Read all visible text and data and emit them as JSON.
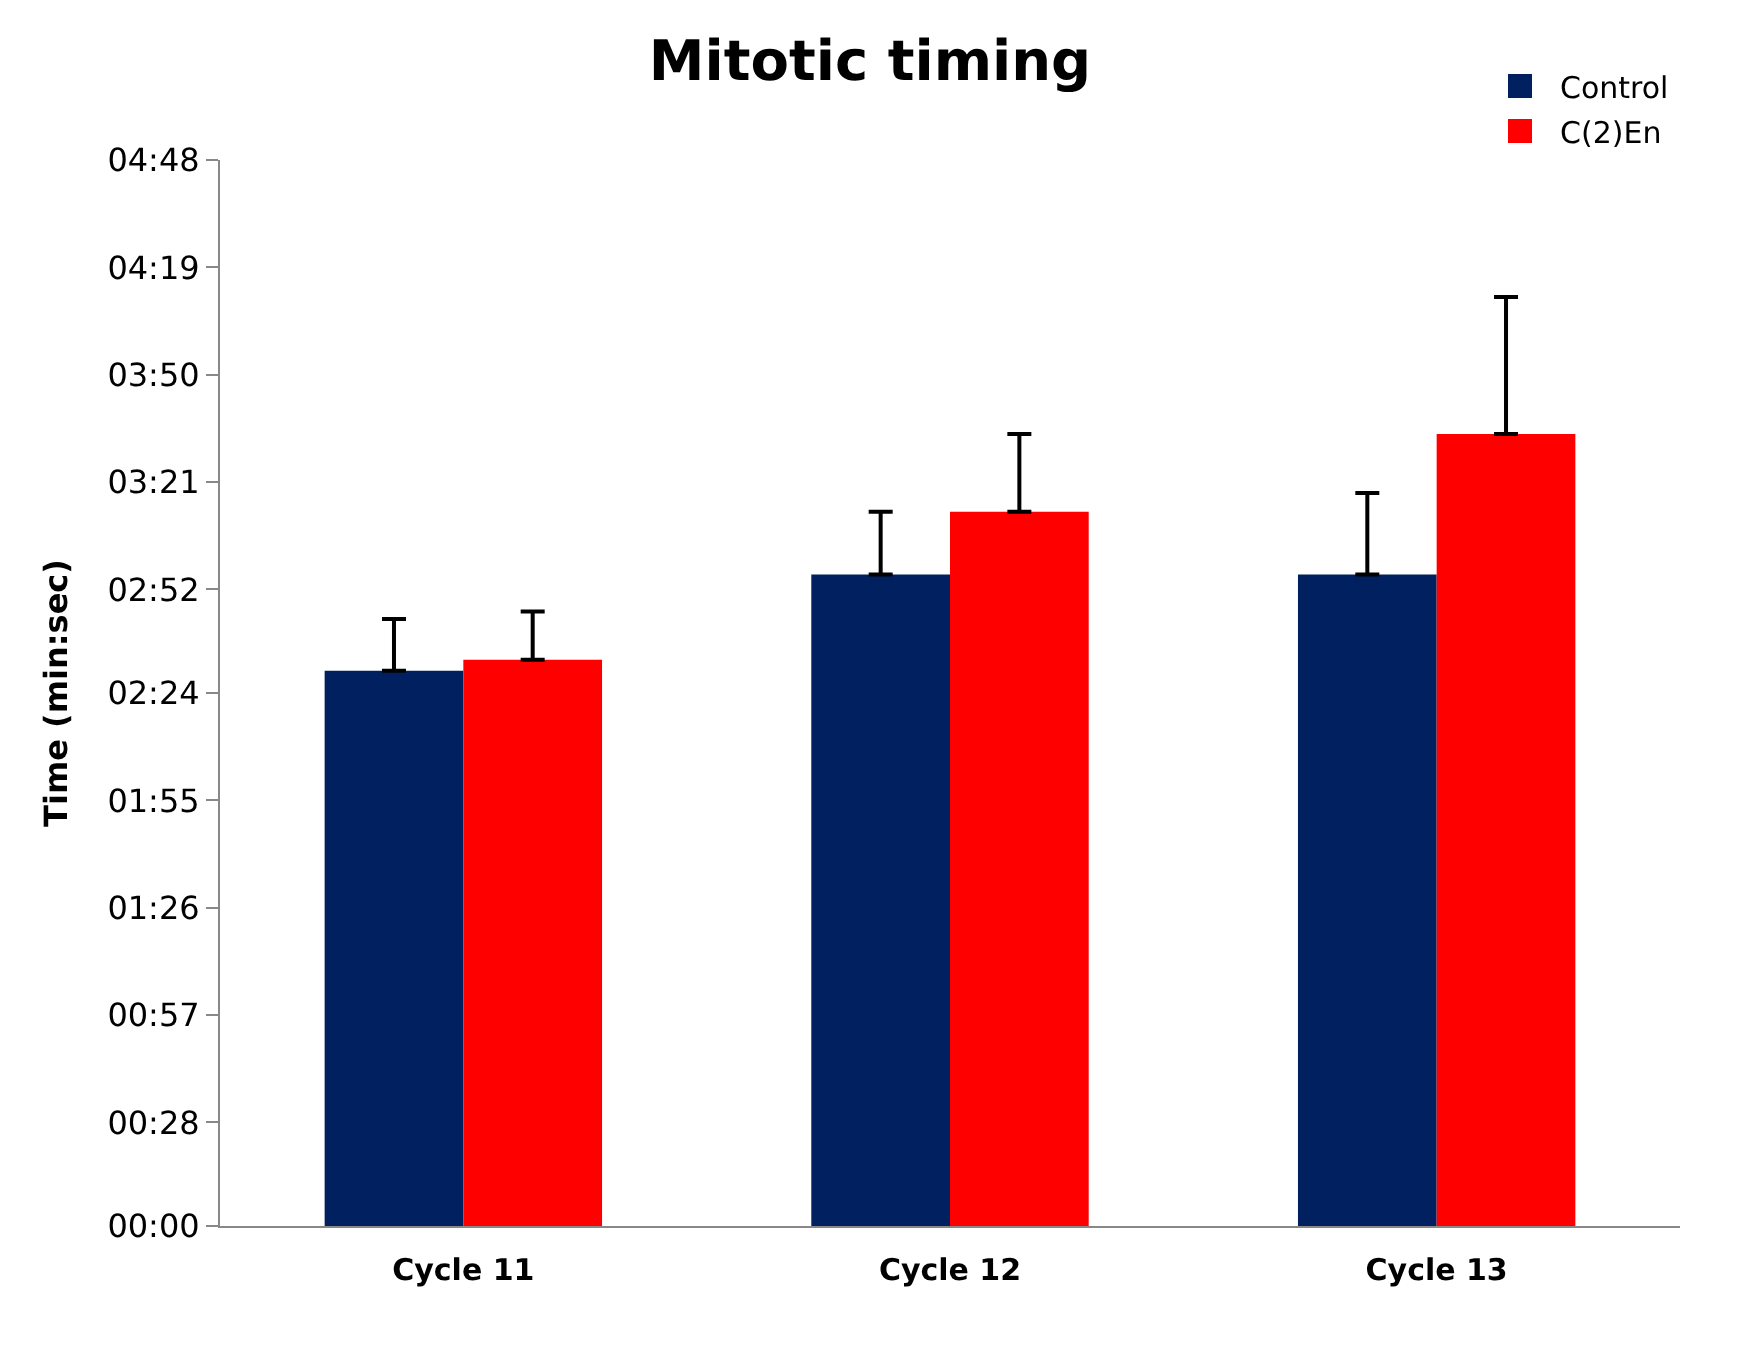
{
  "chart_data": {
    "type": "bar",
    "title": "Mitotic timing",
    "ylabel": "Time (min:sec)",
    "categories": [
      "Cycle 11",
      "Cycle 12",
      "Cycle 13"
    ],
    "series": [
      {
        "name": "Control",
        "color": "#002060",
        "values": [
          150,
          176,
          176
        ],
        "errors": [
          [
            150,
            164
          ],
          [
            176,
            193
          ],
          [
            176,
            198
          ]
        ]
      },
      {
        "name": "C(2)En",
        "color": "#ff0000",
        "values": [
          153,
          193,
          214
        ],
        "errors": [
          [
            153,
            166
          ],
          [
            193,
            214
          ],
          [
            214,
            251
          ]
        ]
      }
    ],
    "ylim": [
      0,
      288
    ],
    "yticks": [
      {
        "value": 0,
        "label": "00:00"
      },
      {
        "value": 28,
        "label": "00:28"
      },
      {
        "value": 57,
        "label": "00:57"
      },
      {
        "value": 86,
        "label": "01:26"
      },
      {
        "value": 115,
        "label": "01:55"
      },
      {
        "value": 144,
        "label": "02:24"
      },
      {
        "value": 172,
        "label": "02:52"
      },
      {
        "value": 201,
        "label": "03:21"
      },
      {
        "value": 230,
        "label": "03:50"
      },
      {
        "value": 259,
        "label": "04:19"
      },
      {
        "value": 288,
        "label": "04:48"
      }
    ],
    "grid": false,
    "legend": "top right"
  }
}
